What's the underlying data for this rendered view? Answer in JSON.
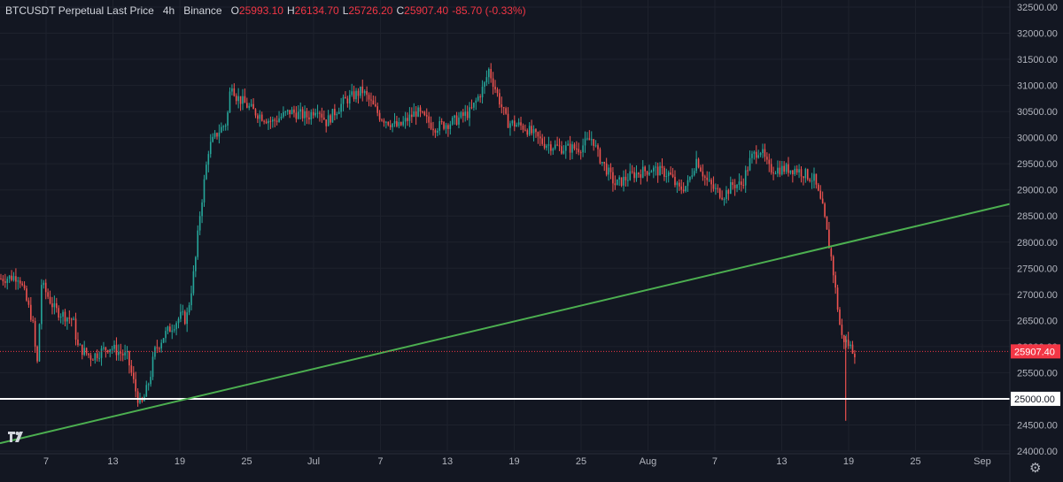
{
  "header": {
    "symbol": "BTCUSDT Perpetual Last Price",
    "interval": "4h",
    "exchange": "Binance",
    "open_key": "O",
    "open": "25993.10",
    "high_key": "H",
    "high": "26134.70",
    "low_key": "L",
    "low": "25726.20",
    "close_key": "C",
    "close": "25907.40",
    "change": "-85.70 (-0.33%)"
  },
  "colors": {
    "background": "#131722",
    "up": "#26a69a",
    "down": "#ef5350",
    "trendline": "#4caf50",
    "support": "#ffffff",
    "price_label": "#f23645"
  },
  "icons": [
    "tradingview-logo-icon",
    "gear-icon"
  ],
  "chart_data": {
    "type": "candlestick",
    "y_range": [
      24000,
      32500
    ],
    "y_ticks": [
      "32500.00",
      "32000.00",
      "31500.00",
      "31000.00",
      "30500.00",
      "30000.00",
      "29500.00",
      "29000.00",
      "28500.00",
      "28000.00",
      "27500.00",
      "27000.00",
      "26500.00",
      "26000.00",
      "25500.00",
      "25000.00",
      "24500.00",
      "24000.00"
    ],
    "x_ticks": [
      "7",
      "13",
      "19",
      "25",
      "Jul",
      "7",
      "13",
      "19",
      "25",
      "Aug",
      "7",
      "13",
      "19",
      "25",
      "Sep"
    ],
    "last_price": 25907.4,
    "last_price_label": "25907.40",
    "support_level": 25000,
    "support_label": "25000.00",
    "trendline": {
      "start": 24150,
      "end": 28730
    },
    "price_path": [
      [
        27300,
        0.0
      ],
      [
        27350,
        0.02
      ],
      [
        26500,
        0.035
      ],
      [
        25600,
        0.04
      ],
      [
        27200,
        0.045
      ],
      [
        26700,
        0.06
      ],
      [
        26500,
        0.08
      ],
      [
        26000,
        0.085
      ],
      [
        25800,
        0.1
      ],
      [
        26000,
        0.12
      ],
      [
        25900,
        0.13
      ],
      [
        25800,
        0.14
      ],
      [
        25100,
        0.15
      ],
      [
        24850,
        0.155
      ],
      [
        25100,
        0.16
      ],
      [
        25400,
        0.165
      ],
      [
        25900,
        0.17
      ],
      [
        26200,
        0.18
      ],
      [
        26400,
        0.19
      ],
      [
        26600,
        0.2
      ],
      [
        26500,
        0.205
      ],
      [
        27000,
        0.21
      ],
      [
        27600,
        0.215
      ],
      [
        28500,
        0.22
      ],
      [
        29800,
        0.23
      ],
      [
        30100,
        0.24
      ],
      [
        30300,
        0.25
      ],
      [
        31100,
        0.255
      ],
      [
        30800,
        0.26
      ],
      [
        30500,
        0.28
      ],
      [
        30300,
        0.3
      ],
      [
        30500,
        0.32
      ],
      [
        30400,
        0.34
      ],
      [
        30600,
        0.35
      ],
      [
        30300,
        0.36
      ],
      [
        30700,
        0.38
      ],
      [
        30900,
        0.4
      ],
      [
        30400,
        0.42
      ],
      [
        30200,
        0.44
      ],
      [
        30500,
        0.46
      ],
      [
        30200,
        0.48
      ],
      [
        30300,
        0.5
      ],
      [
        30500,
        0.52
      ],
      [
        31000,
        0.535
      ],
      [
        31300,
        0.54
      ],
      [
        30800,
        0.55
      ],
      [
        30300,
        0.56
      ],
      [
        30200,
        0.58
      ],
      [
        29900,
        0.6
      ],
      [
        29800,
        0.62
      ],
      [
        29800,
        0.64
      ],
      [
        30000,
        0.655
      ],
      [
        29700,
        0.66
      ],
      [
        29400,
        0.67
      ],
      [
        29100,
        0.68
      ],
      [
        29200,
        0.69
      ],
      [
        29300,
        0.7
      ],
      [
        29400,
        0.72
      ],
      [
        29300,
        0.74
      ],
      [
        29000,
        0.75
      ],
      [
        29100,
        0.76
      ],
      [
        29600,
        0.77
      ],
      [
        29200,
        0.78
      ],
      [
        29000,
        0.79
      ],
      [
        28900,
        0.8
      ],
      [
        29100,
        0.81
      ],
      [
        29100,
        0.82
      ],
      [
        29600,
        0.83
      ],
      [
        29800,
        0.84
      ],
      [
        29400,
        0.85
      ],
      [
        29400,
        0.86
      ],
      [
        29400,
        0.87
      ],
      [
        29400,
        0.88
      ],
      [
        29300,
        0.89
      ],
      [
        29200,
        0.9
      ],
      [
        28600,
        0.91
      ],
      [
        27600,
        0.92
      ],
      [
        26200,
        0.93
      ],
      [
        26000,
        0.94
      ],
      [
        25900,
        0.945
      ]
    ]
  }
}
